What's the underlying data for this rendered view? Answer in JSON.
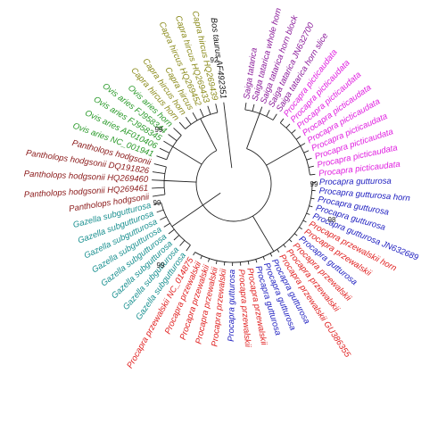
{
  "leaves": [
    {
      "label": "Bos taurus AF492351",
      "color": "#111111"
    },
    {
      "label": "Capra hircus HQ269439",
      "color": "#8a8a1a"
    },
    {
      "label": "Capra hircus HQ269433",
      "color": "#8a8a1a"
    },
    {
      "label": "Capra hircus HQ269452",
      "color": "#8a8a1a"
    },
    {
      "label": "Capra hircus",
      "color": "#8a8a1a"
    },
    {
      "label": "Capra hircus horn",
      "color": "#8a8a1a"
    },
    {
      "label": "Capra hircus horn",
      "color": "#8a8a1a"
    },
    {
      "label": "Ovis aries horn",
      "color": "#2a9a2a"
    },
    {
      "label": "Ovis aries FJ958344",
      "color": "#2a9a2a"
    },
    {
      "label": "Ovis aries FJ958345",
      "color": "#2a9a2a"
    },
    {
      "label": "Ovis aries AF010406",
      "color": "#2a9a2a"
    },
    {
      "label": "Ovis aries NC_001941",
      "color": "#2a9a2a"
    },
    {
      "label": "Pantholops hodgsonii",
      "color": "#8b1a1a"
    },
    {
      "label": "Pantholops hodgsonii DQ191826",
      "color": "#8b1a1a"
    },
    {
      "label": "Pantholops hodgsonii HQ269460",
      "color": "#8b1a1a"
    },
    {
      "label": "Pantholops hodgsonii HQ269461",
      "color": "#8b1a1a"
    },
    {
      "label": "Pantholops hodgsonii",
      "color": "#8b1a1a"
    },
    {
      "label": "Gazella subgutturosa",
      "color": "#1a9090"
    },
    {
      "label": "Gazella subgutturosa",
      "color": "#1a9090"
    },
    {
      "label": "Gazella subgutturosa",
      "color": "#1a9090"
    },
    {
      "label": "Gazella subgutturosa",
      "color": "#1a9090"
    },
    {
      "label": "Gazella subgutturosa",
      "color": "#1a9090"
    },
    {
      "label": "Gazella subgutturosa",
      "color": "#1a9090"
    },
    {
      "label": "Gazella subgutturosa",
      "color": "#1a9090"
    },
    {
      "label": "Gazella subgutturosa",
      "color": "#1a9090"
    },
    {
      "label": "Procapra przewalskii NC_014875",
      "color": "#e02020"
    },
    {
      "label": "Procapra przewalskii",
      "color": "#e02020"
    },
    {
      "label": "Procapra przewalskii",
      "color": "#e02020"
    },
    {
      "label": "Procapra przewalskii",
      "color": "#e02020"
    },
    {
      "label": "Procapra przewalskii",
      "color": "#e02020"
    },
    {
      "label": "Procapra gutturosa",
      "color": "#2020c0"
    },
    {
      "label": "Procapra przewalskii",
      "color": "#e02020"
    },
    {
      "label": "Procapra przewalskii",
      "color": "#e02020"
    },
    {
      "label": "Procapra gutturosa",
      "color": "#2020c0"
    },
    {
      "label": "Procapra gutturosa",
      "color": "#2020c0"
    },
    {
      "label": "Procapra gutturosa",
      "color": "#2020c0"
    },
    {
      "label": "Procapra przewalskii GU386355",
      "color": "#e02020"
    },
    {
      "label": "Procapra przewalskii",
      "color": "#e02020"
    },
    {
      "label": "Procapra przewalskii",
      "color": "#e02020"
    },
    {
      "label": "Procapra gutturosa",
      "color": "#2020c0"
    },
    {
      "label": "Procapra przewalskii",
      "color": "#e02020"
    },
    {
      "label": "Procapra przewalskii  horn",
      "color": "#e02020"
    },
    {
      "label": "Procapra gutturosa JN632689",
      "color": "#2020c0"
    },
    {
      "label": "Procapra gutturosa",
      "color": "#2020c0"
    },
    {
      "label": "Procapra gutturosa",
      "color": "#2020c0"
    },
    {
      "label": "Procapra gutturosa horn",
      "color": "#2020c0"
    },
    {
      "label": "Procapra gutturosa",
      "color": "#2020c0"
    },
    {
      "label": "Procapra picticaudata",
      "color": "#e020e0"
    },
    {
      "label": "Procapra picticaudata",
      "color": "#e020e0"
    },
    {
      "label": "Procapra picticaudata",
      "color": "#e020e0"
    },
    {
      "label": "Procapra picticaudata",
      "color": "#e020e0"
    },
    {
      "label": "Procapra picticaudata",
      "color": "#e020e0"
    },
    {
      "label": "Procapra picticaudata",
      "color": "#e020e0"
    },
    {
      "label": "Procapra picticaudata",
      "color": "#e020e0"
    },
    {
      "label": "Procapra picticaudata",
      "color": "#e020e0"
    },
    {
      "label": "Procapra picticaudata",
      "color": "#e020e0"
    },
    {
      "label": "Saiga tatarica horn slice",
      "color": "#8a1a9a"
    },
    {
      "label": "Saiga tatarica JN632700",
      "color": "#8a1a9a"
    },
    {
      "label": "Saiga tatarica horn block",
      "color": "#8a1a9a"
    },
    {
      "label": "Saiga tatarica whole horn",
      "color": "#8a1a9a"
    },
    {
      "label": "Saiga tatarica",
      "color": "#8a1a9a"
    }
  ],
  "bootstrap": [
    "92",
    "99",
    "99",
    "99",
    "99",
    "98"
  ]
}
